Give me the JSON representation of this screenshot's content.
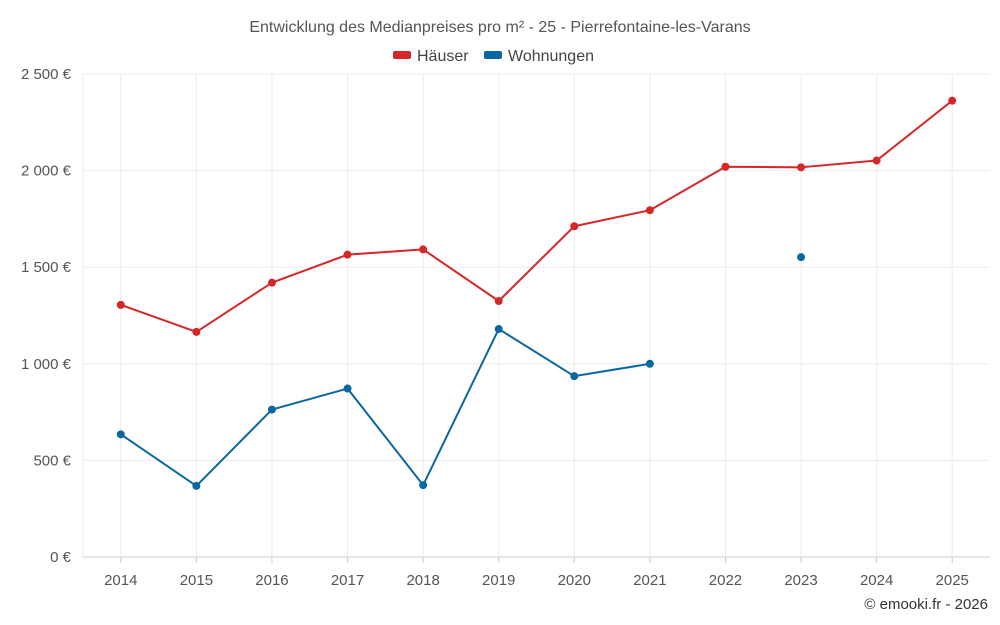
{
  "chart_data": {
    "type": "line",
    "title": "Entwicklung des Medianpreises pro m² - 25 - Pierrefontaine-les-Varans",
    "categories": [
      "2014",
      "2015",
      "2016",
      "2017",
      "2018",
      "2019",
      "2020",
      "2021",
      "2022",
      "2023",
      "2024",
      "2025"
    ],
    "y_ticks": [
      0,
      500,
      1000,
      1500,
      2000,
      2500
    ],
    "y_tick_labels": [
      "0 €",
      "500 €",
      "1 000 €",
      "1 500 €",
      "2 000 €",
      "2 500 €"
    ],
    "ylim": [
      0,
      2500
    ],
    "grid": true,
    "legend_position": "top-center",
    "series": [
      {
        "name": "Häuser",
        "color": "#d62728",
        "values": [
          1305,
          1165,
          1420,
          1565,
          1592,
          1325,
          1712,
          1795,
          2020,
          2017,
          2052,
          2362
        ]
      },
      {
        "name": "Wohnungen",
        "color": "#0b67a0",
        "values": [
          635,
          368,
          763,
          872,
          372,
          1180,
          936,
          1000,
          null,
          1552,
          null,
          null
        ]
      }
    ],
    "credit": "© emooki.fr - 2026"
  }
}
